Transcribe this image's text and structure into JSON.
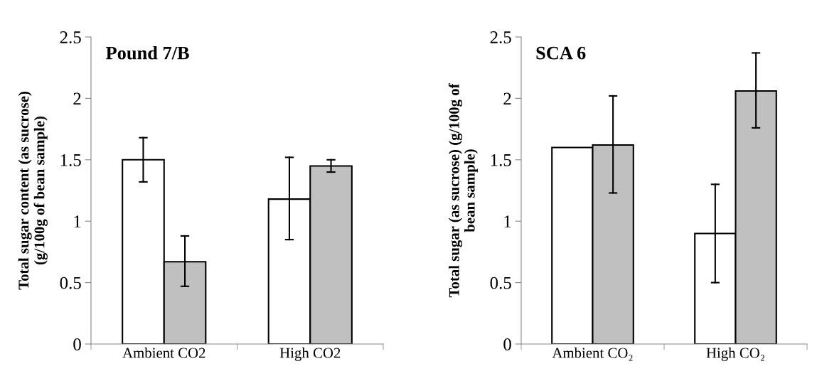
{
  "chart_data": [
    {
      "type": "bar",
      "title": "Pound 7/B",
      "ylabel": "Total sugar content (as sucrose)\n(g/100g of bean sample)",
      "categories": [
        "Ambient CO2",
        "High CO2"
      ],
      "series": [
        {
          "color": "#ffffff",
          "values": [
            1.5,
            1.18
          ],
          "errors": [
            [
              1.32,
              1.68
            ],
            [
              0.85,
              1.52
            ]
          ]
        },
        {
          "color": "#c0c0c0",
          "values": [
            0.67,
            1.45
          ],
          "errors": [
            [
              0.47,
              0.88
            ],
            [
              1.4,
              1.5
            ]
          ]
        }
      ],
      "ylim": [
        0,
        2.5
      ],
      "yticks": [
        0,
        0.5,
        1,
        1.5,
        2,
        2.5
      ],
      "grid": false,
      "legend": false
    },
    {
      "type": "bar",
      "title": "SCA 6",
      "ylabel": "Total sugar (as sucrose) (g/100g of\nbean sample)",
      "categories": [
        "Ambient CO₂",
        "High CO₂"
      ],
      "series": [
        {
          "color": "#ffffff",
          "values": [
            1.6,
            0.9
          ],
          "errors": [
            null,
            [
              0.5,
              1.3
            ]
          ]
        },
        {
          "color": "#c0c0c0",
          "values": [
            1.62,
            2.06
          ],
          "errors": [
            [
              1.23,
              2.02
            ],
            [
              1.76,
              2.37
            ]
          ]
        }
      ],
      "ylim": [
        0,
        2.5
      ],
      "yticks": [
        0,
        0.5,
        1,
        1.5,
        2,
        2.5
      ],
      "grid": false,
      "legend": false
    }
  ]
}
